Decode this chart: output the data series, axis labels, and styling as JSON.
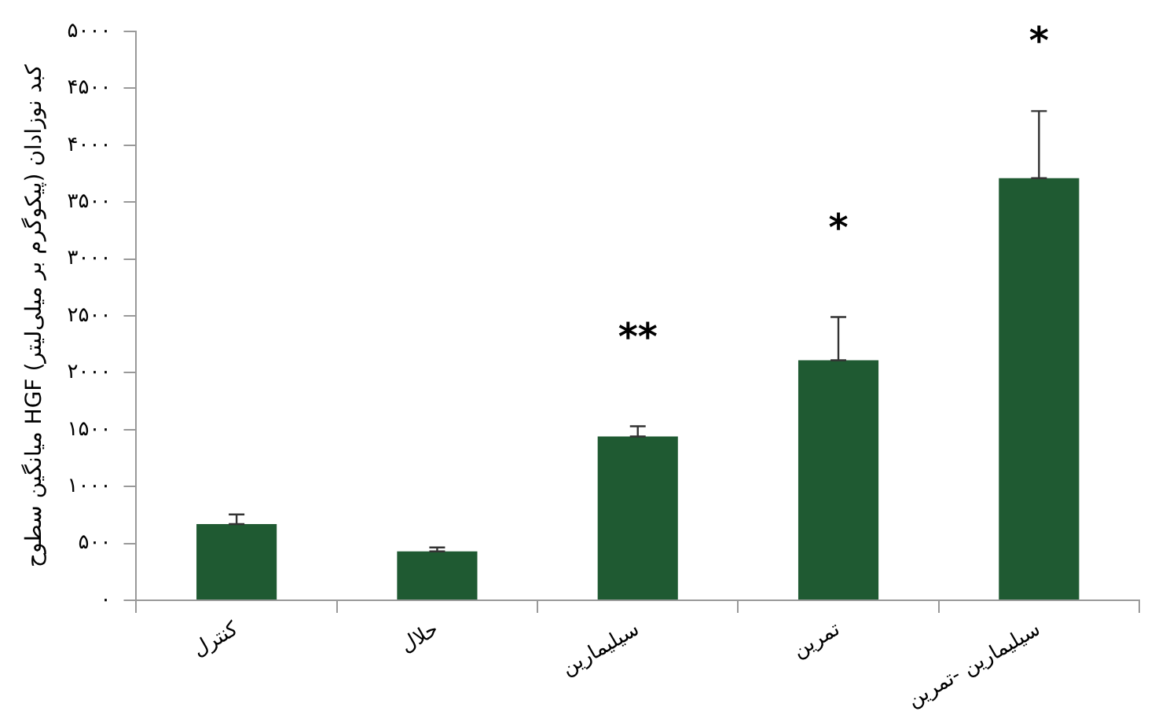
{
  "chart_data": {
    "type": "bar",
    "ylabel": "میانگین سطوح HGF کبد نوزادان (پیکوگرم بر میلی‌لیتر)",
    "categories": [
      "کنترل",
      "حلال",
      "سیلیمارین",
      "تمرین",
      "سیلیمارین -تمرین"
    ],
    "values": [
      670,
      430,
      1440,
      2110,
      3710
    ],
    "errors": [
      [
        670,
        755
      ],
      [
        430,
        465
      ],
      [
        1440,
        1530
      ],
      [
        2110,
        2490
      ],
      [
        3710,
        4300
      ]
    ],
    "color": "#1f5a32",
    "ylim": [
      0,
      5000
    ],
    "yticks": [
      {
        "value": 0,
        "label": "۰"
      },
      {
        "value": 500,
        "label": "۵۰۰"
      },
      {
        "value": 1000,
        "label": "۱۰۰۰"
      },
      {
        "value": 1500,
        "label": "۱۵۰۰"
      },
      {
        "value": 2000,
        "label": "۲۰۰۰"
      },
      {
        "value": 2500,
        "label": "۲۵۰۰"
      },
      {
        "value": 3000,
        "label": "۳۰۰۰"
      },
      {
        "value": 3500,
        "label": "۳۵۰۰"
      },
      {
        "value": 4000,
        "label": "۴۰۰۰"
      },
      {
        "value": 4500,
        "label": "۴۵۰۰"
      },
      {
        "value": 5000,
        "label": "۵۰۰۰"
      }
    ],
    "annotations": [
      "**",
      "*",
      "*"
    ],
    "grid": false,
    "legend": false
  }
}
